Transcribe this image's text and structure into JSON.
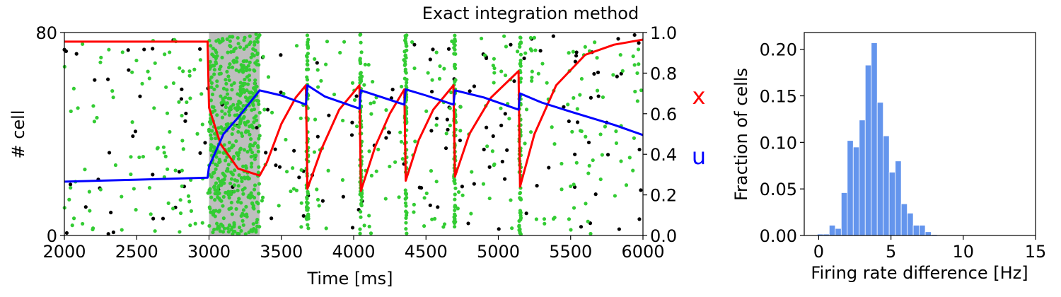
{
  "chart_data": [
    {
      "type": "raster+line",
      "title": "Exact integration method",
      "xlabel": "Time [ms]",
      "ylabel_left": "# cell",
      "xlim": [
        2000,
        6000
      ],
      "ylim_left": [
        0,
        80
      ],
      "ylim_right": [
        0.0,
        1.0
      ],
      "x_ticks": [
        2000,
        2500,
        3000,
        3500,
        4000,
        4500,
        5000,
        5500,
        6000
      ],
      "y_ticks_left": [
        0,
        80
      ],
      "y_ticks_right": [
        "0.0",
        "0.2",
        "0.4",
        "0.6",
        "0.8",
        "1.0"
      ],
      "shaded_interval": [
        3000,
        3350
      ],
      "burst_times": [
        3680,
        4050,
        4360,
        4700,
        5150
      ],
      "series": [
        {
          "name": "x",
          "color": "#ff0000",
          "x": [
            2000,
            2500,
            2990,
            3000,
            3080,
            3200,
            3350,
            3400,
            3500,
            3600,
            3670,
            3680,
            3780,
            3900,
            4040,
            4050,
            4150,
            4250,
            4350,
            4360,
            4450,
            4550,
            4690,
            4700,
            4800,
            4950,
            5140,
            5150,
            5250,
            5400,
            5600,
            5800,
            6000
          ],
          "y": [
            0.955,
            0.955,
            0.955,
            0.63,
            0.45,
            0.33,
            0.295,
            0.36,
            0.55,
            0.68,
            0.74,
            0.23,
            0.43,
            0.62,
            0.74,
            0.22,
            0.44,
            0.6,
            0.72,
            0.27,
            0.47,
            0.62,
            0.74,
            0.29,
            0.5,
            0.68,
            0.81,
            0.24,
            0.5,
            0.74,
            0.89,
            0.94,
            0.965
          ]
        },
        {
          "name": "u",
          "color": "#0000ff",
          "x": [
            2000,
            2500,
            2990,
            3000,
            3100,
            3200,
            3350,
            3500,
            3670,
            3680,
            3800,
            4040,
            4050,
            4200,
            4350,
            4360,
            4500,
            4690,
            4700,
            4900,
            5140,
            5150,
            5300,
            5500,
            5800,
            6000
          ],
          "y": [
            0.265,
            0.275,
            0.285,
            0.34,
            0.5,
            0.58,
            0.715,
            0.69,
            0.645,
            0.74,
            0.685,
            0.625,
            0.715,
            0.68,
            0.645,
            0.72,
            0.69,
            0.645,
            0.715,
            0.68,
            0.62,
            0.7,
            0.655,
            0.61,
            0.545,
            0.495
          ]
        }
      ],
      "annotations": [
        {
          "text": "x",
          "color": "#ff0000"
        },
        {
          "text": "u",
          "color": "#0000ff"
        }
      ],
      "raster_colors": {
        "excitatory": "#33cc33",
        "other": "#000000"
      }
    },
    {
      "type": "bar",
      "title": "",
      "xlabel": "Firing rate difference [Hz]",
      "ylabel": "Fraction of cells",
      "xlim": [
        -1,
        15
      ],
      "ylim": [
        0,
        0.218
      ],
      "x_ticks": [
        0,
        5,
        10,
        15
      ],
      "y_ticks": [
        "0.00",
        "0.05",
        "0.10",
        "0.15",
        "0.20"
      ],
      "bin_width": 0.415,
      "bin_starts": [
        -0.1,
        0.315,
        0.73,
        1.145,
        1.56,
        1.975,
        2.39,
        2.805,
        3.22,
        3.635,
        4.05,
        4.465,
        4.88,
        5.295,
        5.71,
        6.125,
        6.54,
        6.955,
        7.37,
        7.785
      ],
      "values": [
        0.0015,
        0.0015,
        0.011,
        0.0075,
        0.046,
        0.102,
        0.095,
        0.124,
        0.183,
        0.207,
        0.143,
        0.107,
        0.068,
        0.08,
        0.034,
        0.024,
        0.011,
        0.011,
        0.004,
        0.001
      ],
      "color": "#6495ed"
    }
  ]
}
